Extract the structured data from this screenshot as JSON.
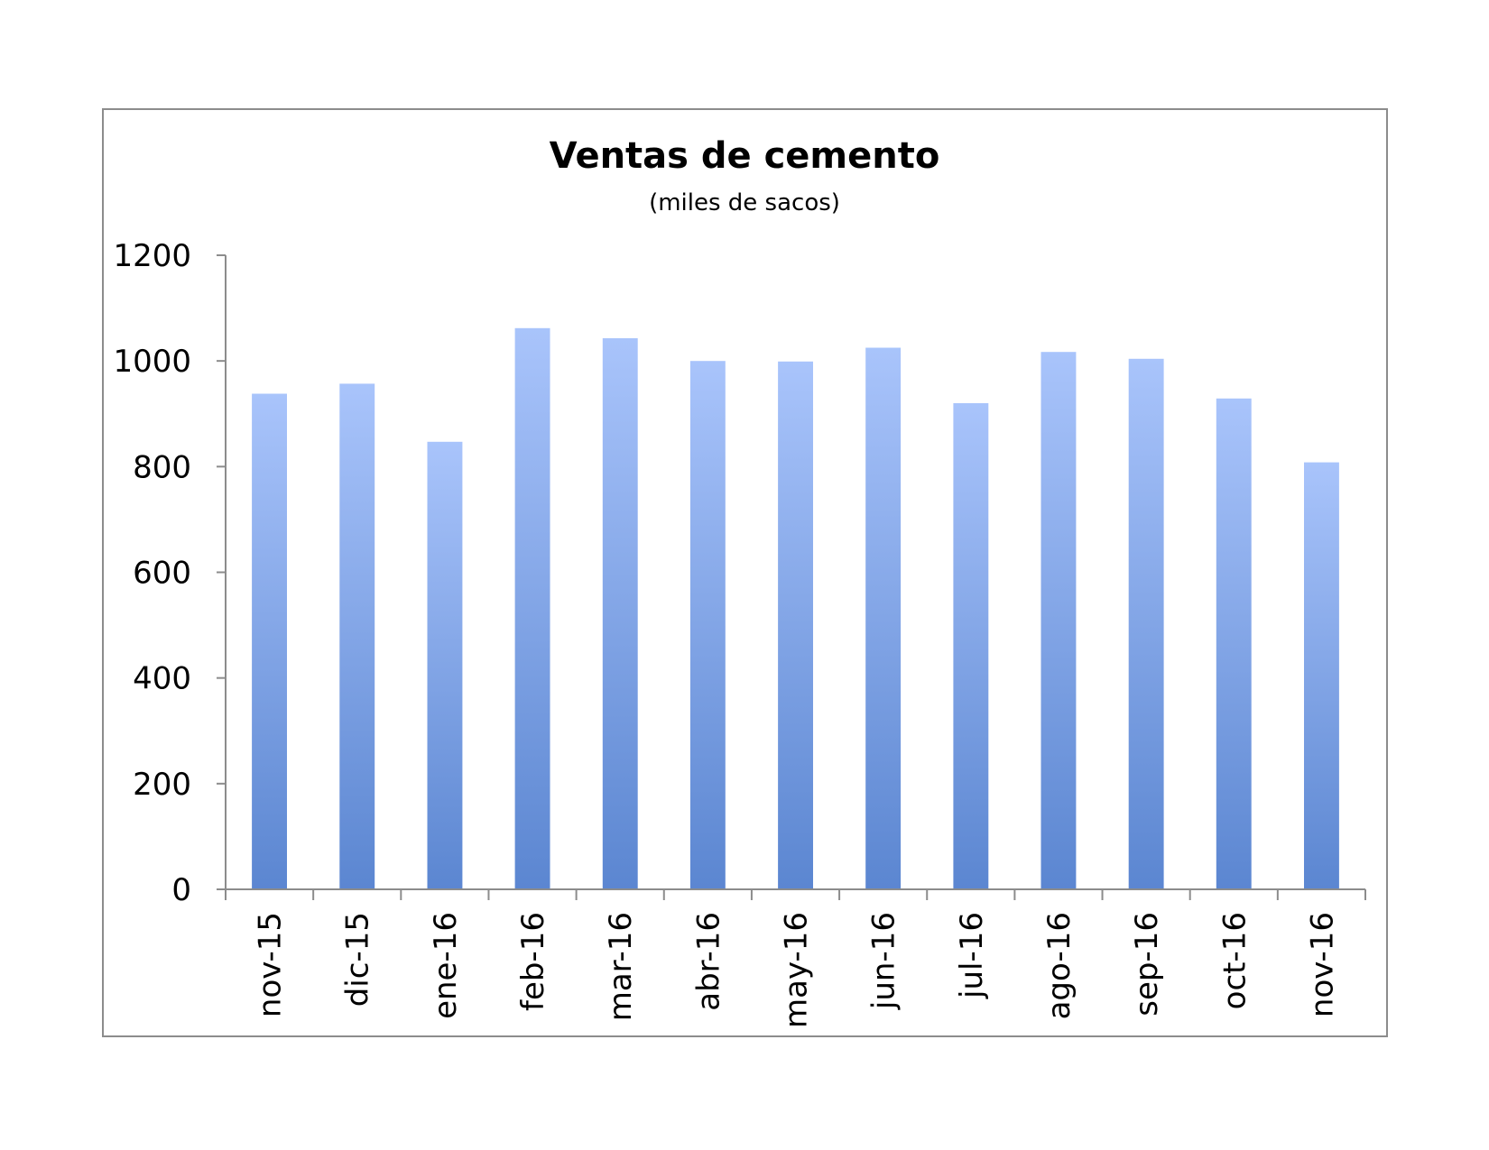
{
  "chart_data": {
    "type": "bar",
    "title": "Ventas de cemento",
    "subtitle": "(miles de sacos)",
    "xlabel": "",
    "ylabel": "",
    "categories": [
      "nov-15",
      "dic-15",
      "ene-16",
      "feb-16",
      "mar-16",
      "abr-16",
      "may-16",
      "jun-16",
      "jul-16",
      "ago-16",
      "sep-16",
      "oct-16",
      "nov-16"
    ],
    "values": [
      938,
      957,
      847,
      1062,
      1043,
      1000,
      999,
      1025,
      920,
      1017,
      1004,
      929,
      808
    ],
    "ylim": [
      0,
      1200
    ],
    "yticks": [
      0,
      200,
      400,
      600,
      800,
      1000,
      1200
    ],
    "grid": false,
    "legend": "none",
    "colors": {
      "bar_top": "#a9c4fb",
      "bar_bottom": "#5b86d1",
      "axis": "#8c8c8c"
    }
  }
}
